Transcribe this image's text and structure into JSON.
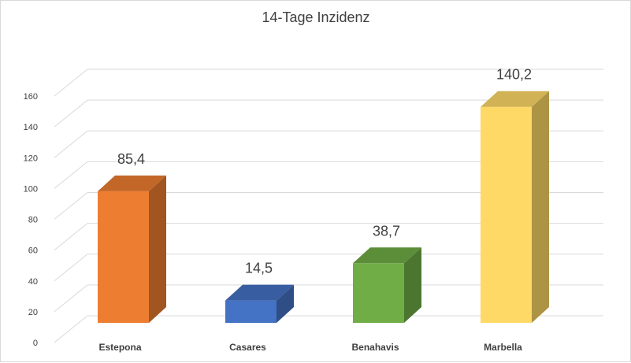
{
  "chart_data": {
    "type": "bar",
    "title": "14-Tage Inzidenz",
    "xlabel": "",
    "ylabel": "",
    "categories": [
      "Estepona",
      "Casares",
      "Benahavis",
      "Marbella"
    ],
    "values": [
      85.4,
      14.5,
      38.7,
      140.2
    ],
    "value_labels": [
      "85,4",
      "14,5",
      "38,7",
      "140,2"
    ],
    "colors": [
      "#ed7d31",
      "#4472c4",
      "#70ad47",
      "#ffd966"
    ],
    "ylim": [
      0,
      160
    ],
    "yticks": [
      "0",
      "20",
      "40",
      "60",
      "80",
      "100",
      "120",
      "140",
      "160"
    ],
    "grid": true,
    "style": "3d-column",
    "legend": "none"
  }
}
